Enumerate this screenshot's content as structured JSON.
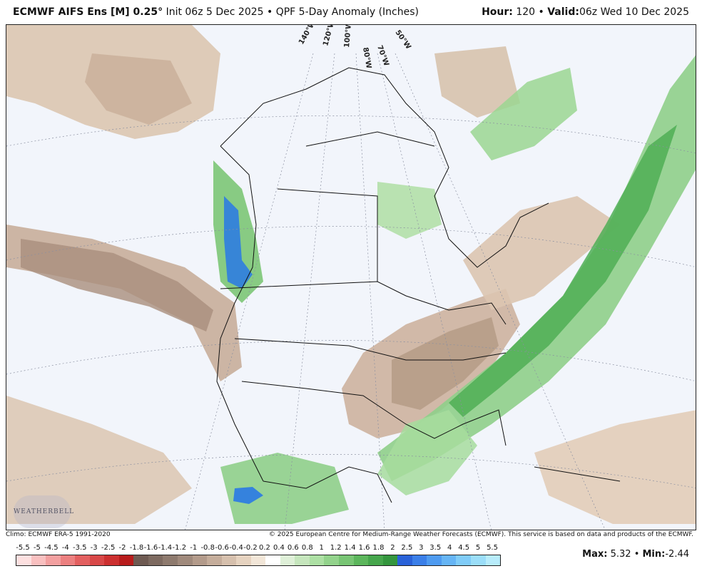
{
  "header": {
    "model": "ECMWF AIFS Ens [M] 0.25",
    "degree": "°",
    "init": "Init 06z 5 Dec 2025",
    "bullet": "•",
    "product": "QPF 5-Day Anomaly (Inches)",
    "hour_label": "Hour:",
    "hour_value": "120",
    "valid_label": "Valid:",
    "valid_value": "06z Wed 10 Dec 2025"
  },
  "map": {
    "longitude_labels": [
      "140°W",
      "120°W",
      "100°W",
      "80°W",
      "70°W",
      "50°W"
    ],
    "logo_text": "WEATHERBELL"
  },
  "footer": {
    "climo": "Climo: ECMWF ERA-5 1991-2020",
    "copyright": "© 2025 European Centre for Medium-Range Weather Forecasts (ECMWF). This service is based on data and products of the ECMWF.",
    "max_label": "Max:",
    "max_value": "5.32",
    "min_label": "Min:",
    "min_value": "-2.44"
  },
  "legend": {
    "labels": [
      "-5.5",
      "-5",
      "-4.5",
      "-4",
      "-3.5",
      "-3",
      "-2.5",
      "-2",
      "-1.8",
      "-1.6",
      "-1.4",
      "-1.2",
      "-1",
      "-0.8",
      "-0.6",
      "-0.4",
      "-0.2",
      "0.2",
      "0.4",
      "0.6",
      "0.8",
      "1",
      "1.2",
      "1.4",
      "1.6",
      "1.8",
      "2",
      "2.5",
      "3",
      "3.5",
      "4",
      "4.5",
      "5",
      "5.5"
    ],
    "colors": [
      "#fde0e0",
      "#f9c0c0",
      "#f3a0a0",
      "#ec8080",
      "#e36060",
      "#d84848",
      "#cc3030",
      "#b81c1c",
      "#6e5a52",
      "#7d6a60",
      "#8e7a6e",
      "#a08a7c",
      "#b39b8b",
      "#c5ad9b",
      "#d6c0ad",
      "#e6d3c0",
      "#f2e6d8",
      "#ffffff",
      "#dff0d8",
      "#c6e6bd",
      "#ade0a4",
      "#93d38c",
      "#78c574",
      "#5cb65c",
      "#46a64c",
      "#34963e",
      "#2a62d8",
      "#3b7fe8",
      "#4f9bf0",
      "#66b5f5",
      "#80ccf8",
      "#9bdef9",
      "#b8ecfb"
    ]
  }
}
